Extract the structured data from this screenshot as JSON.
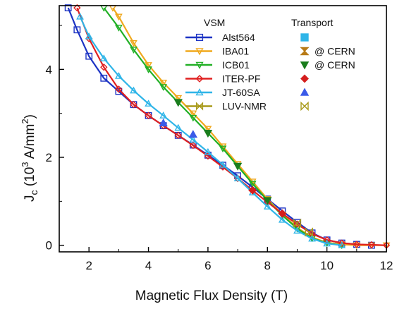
{
  "chart_data": {
    "type": "scatter",
    "xlabel": "Magnetic Flux Density (T)",
    "ylabel": {
      "base": "J",
      "subscript": "c",
      "pre": " (10",
      "exponent": "3",
      "mid": " A/mm",
      "exponent2": "2",
      "post": ")"
    },
    "xlim": [
      1,
      12
    ],
    "ylim": [
      -0.15,
      5.45
    ],
    "x_ticks": [
      2,
      4,
      6,
      8,
      10,
      12
    ],
    "y_ticks": [
      0,
      2,
      4
    ],
    "grid": false,
    "legend": {
      "position": "top-right",
      "vsm_header": "VSM",
      "transport_header": "Transport",
      "entries": [
        {
          "label": "Alst564",
          "transport_note": ""
        },
        {
          "label": "IBA01",
          "transport_note": "@ CERN"
        },
        {
          "label": "ICB01",
          "transport_note": "@ CERN"
        },
        {
          "label": "ITER-PF",
          "transport_note": ""
        },
        {
          "label": "JT-60SA",
          "transport_note": ""
        },
        {
          "label": "LUV-NMR",
          "transport_note": ""
        }
      ]
    },
    "series": [
      {
        "name": "Alst564",
        "color": "#1c33c4",
        "marker": "square-open",
        "transport_marker": "square-filled-cyan",
        "x": [
          1.3,
          1.6,
          2.0,
          2.5,
          3.0,
          3.5,
          4.0,
          4.5,
          5.0,
          5.5,
          6.0,
          6.5,
          7.0,
          7.5,
          8.0,
          8.5,
          9.0,
          9.5,
          10.0,
          10.5,
          11.0,
          11.5
        ],
        "y": [
          5.4,
          4.9,
          4.3,
          3.8,
          3.5,
          3.2,
          2.95,
          2.72,
          2.5,
          2.28,
          2.05,
          1.82,
          1.58,
          1.32,
          1.05,
          0.78,
          0.52,
          0.28,
          0.12,
          0.05,
          0.02,
          0.0
        ],
        "transport": []
      },
      {
        "name": "IBA01",
        "color": "#f0a91e",
        "marker": "triangle-down-open",
        "transport_marker": "hourglass-filled-orange",
        "x": [
          2.8,
          3.0,
          3.5,
          4.0,
          4.5,
          5.0,
          5.5,
          6.0,
          6.5,
          7.0,
          7.5,
          8.0,
          8.5,
          9.0,
          9.5,
          10.0,
          10.5,
          11.0,
          11.5,
          12.0
        ],
        "y": [
          5.4,
          5.2,
          4.6,
          4.1,
          3.7,
          3.35,
          3.0,
          2.65,
          2.25,
          1.85,
          1.45,
          1.05,
          0.7,
          0.4,
          0.18,
          0.06,
          0.02,
          0.0,
          0.0,
          0.0
        ],
        "transport": []
      },
      {
        "name": "ICB01",
        "color": "#22b026",
        "marker": "triangle-down-open",
        "transport_marker": "triangle-down-filled-green",
        "x": [
          2.5,
          3.0,
          3.5,
          4.0,
          4.5,
          5.0,
          5.5,
          6.0,
          6.5,
          7.0,
          7.5,
          8.0,
          8.5,
          9.0,
          9.5,
          10.0,
          10.5
        ],
        "y": [
          5.4,
          4.95,
          4.45,
          4.0,
          3.6,
          3.25,
          2.9,
          2.55,
          2.2,
          1.8,
          1.4,
          1.02,
          0.68,
          0.38,
          0.16,
          0.05,
          0.0
        ],
        "transport": [
          {
            "x": 5.0,
            "y": 3.25
          },
          {
            "x": 6.0,
            "y": 2.55
          },
          {
            "x": 7.0,
            "y": 1.8
          },
          {
            "x": 8.0,
            "y": 1.02
          }
        ]
      },
      {
        "name": "ITER-PF",
        "color": "#e02020",
        "marker": "diamond-open",
        "transport_marker": "diamond-filled-red",
        "x": [
          1.6,
          2.0,
          2.5,
          3.0,
          3.5,
          4.0,
          4.5,
          5.0,
          5.5,
          6.0,
          6.5,
          7.0,
          7.5,
          8.0,
          8.5,
          9.0,
          9.5,
          10.0,
          10.5,
          11.0,
          11.5,
          12.0
        ],
        "y": [
          5.4,
          4.7,
          4.05,
          3.55,
          3.2,
          2.95,
          2.72,
          2.5,
          2.27,
          2.03,
          1.78,
          1.52,
          1.25,
          0.98,
          0.72,
          0.48,
          0.26,
          0.12,
          0.05,
          0.02,
          0.01,
          0.0
        ],
        "transport": [
          {
            "x": 7.5,
            "y": 1.25
          },
          {
            "x": 8.5,
            "y": 0.72
          }
        ]
      },
      {
        "name": "JT-60SA",
        "color": "#2fb5e8",
        "marker": "triangle-up-open",
        "transport_marker": "triangle-up-filled-blue",
        "x": [
          1.7,
          2.0,
          2.5,
          3.0,
          3.5,
          4.0,
          4.5,
          5.0,
          5.5,
          6.0,
          6.5,
          7.0,
          7.5,
          8.0,
          8.5,
          9.0,
          9.5,
          10.0,
          10.5
        ],
        "y": [
          5.2,
          4.75,
          4.25,
          3.85,
          3.52,
          3.22,
          2.95,
          2.67,
          2.4,
          2.12,
          1.83,
          1.52,
          1.2,
          0.88,
          0.58,
          0.33,
          0.15,
          0.04,
          0.0
        ],
        "transport": [
          {
            "x": 4.5,
            "y": 2.78
          },
          {
            "x": 5.5,
            "y": 2.52
          }
        ]
      },
      {
        "name": "LUV-NMR",
        "color": "#a89a1a",
        "marker": "bowtie-open",
        "transport_marker": "bowtie-open",
        "x": [],
        "y": [],
        "transport": [
          {
            "x": 9.0,
            "y": 0.5
          },
          {
            "x": 9.4,
            "y": 0.3
          }
        ]
      }
    ]
  }
}
